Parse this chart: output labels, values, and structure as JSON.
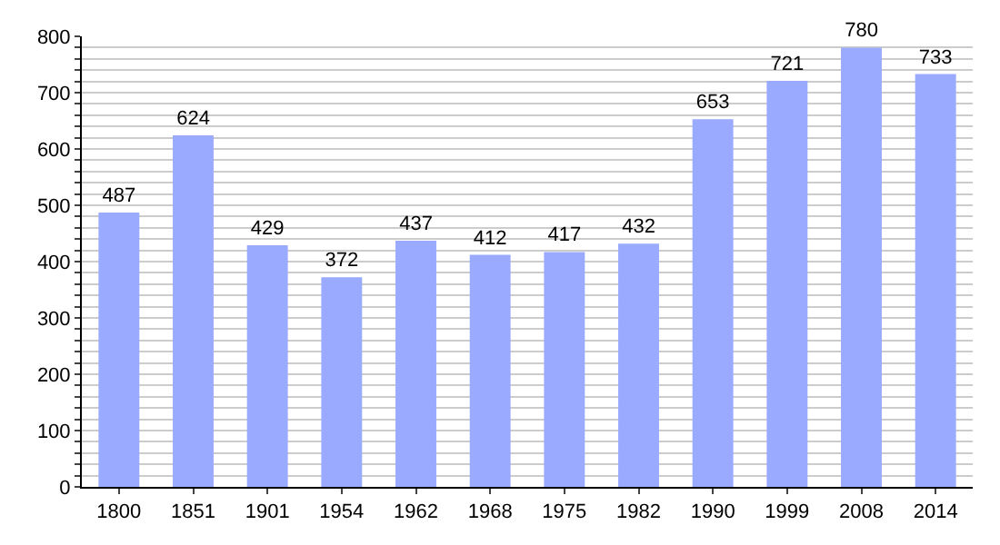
{
  "chart_data": {
    "type": "bar",
    "categories": [
      "1800",
      "1851",
      "1901",
      "1954",
      "1962",
      "1968",
      "1975",
      "1982",
      "1990",
      "1999",
      "2008",
      "2014"
    ],
    "values": [
      487,
      624,
      429,
      372,
      437,
      412,
      417,
      432,
      653,
      721,
      780,
      733
    ],
    "color": "#99aaff",
    "data_labels": true,
    "grid": "y",
    "ylim": [
      0,
      800
    ],
    "yticks": [
      0,
      {
        "value": 20,
        "label": null
      },
      {
        "value": 40,
        "label": null
      },
      {
        "value": 60,
        "label": null
      },
      {
        "value": 80,
        "label": null
      },
      100,
      {
        "value": 120,
        "label": null
      },
      {
        "value": 140,
        "label": null
      },
      {
        "value": 160,
        "label": null
      },
      {
        "value": 180,
        "label": null
      },
      200,
      {
        "value": 220,
        "label": null
      },
      {
        "value": 240,
        "label": null
      },
      {
        "value": 260,
        "label": null
      },
      {
        "value": 280,
        "label": null
      },
      300,
      {
        "value": 320,
        "label": null
      },
      {
        "value": 340,
        "label": null
      },
      {
        "value": 360,
        "label": null
      },
      {
        "value": 380,
        "label": null
      },
      400,
      {
        "value": 420,
        "label": null
      },
      {
        "value": 440,
        "label": null
      },
      {
        "value": 460,
        "label": null
      },
      {
        "value": 480,
        "label": null
      },
      500,
      {
        "value": 520,
        "label": null
      },
      {
        "value": 540,
        "label": null
      },
      {
        "value": 560,
        "label": null
      },
      {
        "value": 580,
        "label": null
      },
      600,
      {
        "value": 620,
        "label": null
      },
      {
        "value": 640,
        "label": null
      },
      {
        "value": 660,
        "label": null
      },
      {
        "value": 680,
        "label": null
      },
      700,
      {
        "value": 720,
        "label": null
      },
      {
        "value": 740,
        "label": null
      },
      {
        "value": 760,
        "label": null
      },
      {
        "value": 780,
        "label": null
      },
      800
    ]
  }
}
